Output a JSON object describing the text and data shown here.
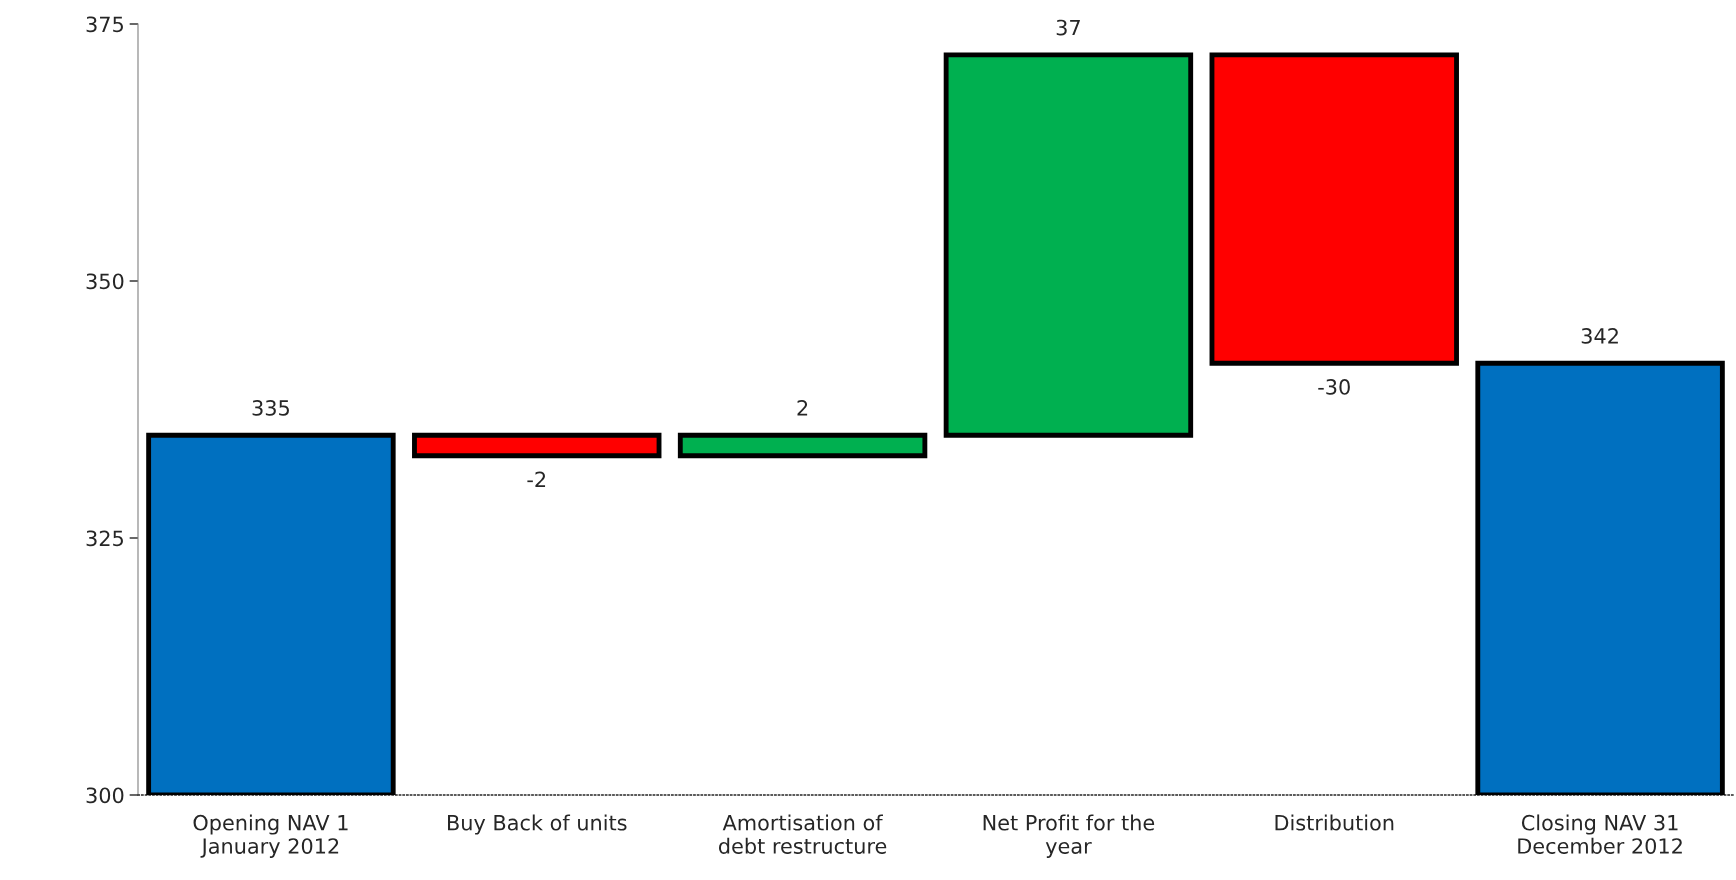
{
  "chart_data": {
    "type": "bar",
    "categories": [
      "Opening NAV 1 January 2012",
      "Buy Back of units",
      "Amortisation of debt restructure",
      "Net Profit for the year",
      "Distribution",
      "Closing NAV 31 December 2012"
    ],
    "values": [
      335,
      -2,
      2,
      37,
      -30,
      342
    ],
    "base": [
      null,
      335,
      333,
      335,
      372,
      null
    ],
    "colors": [
      "#0070c0",
      "#ff0000",
      "#00b050",
      "#00b050",
      "#ff0000",
      "#0070c0"
    ],
    "ylim": [
      300,
      375
    ],
    "yticks": [
      300,
      325,
      350,
      375
    ],
    "data_labels": true,
    "grid": false
  }
}
